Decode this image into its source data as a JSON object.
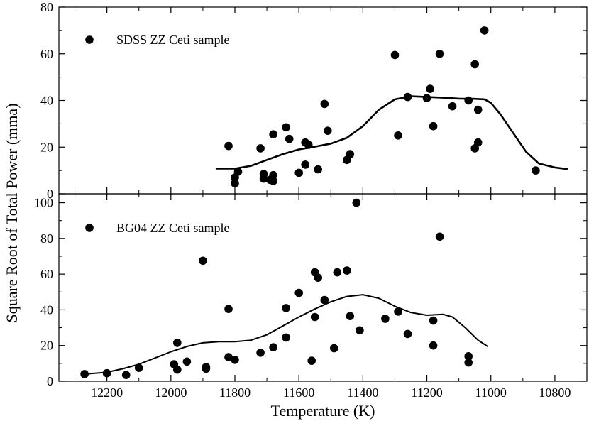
{
  "chart_data": [
    {
      "type": "scatter",
      "legend": "SDSS ZZ Ceti sample",
      "legend_position": "top-left",
      "xlim": [
        12350,
        10700
      ],
      "ylim": [
        0,
        80
      ],
      "yticks": [
        0,
        20,
        40,
        60,
        80
      ],
      "points": [
        [
          11820,
          20.5
        ],
        [
          11800,
          7
        ],
        [
          11800,
          4.5
        ],
        [
          11790,
          9.5
        ],
        [
          11720,
          19.5
        ],
        [
          11710,
          8.5
        ],
        [
          11710,
          6.5
        ],
        [
          11690,
          6
        ],
        [
          11680,
          8
        ],
        [
          11680,
          5.5
        ],
        [
          11680,
          25.5
        ],
        [
          11640,
          28.5
        ],
        [
          11630,
          23.5
        ],
        [
          11600,
          9
        ],
        [
          11580,
          22
        ],
        [
          11580,
          12.5
        ],
        [
          11570,
          21
        ],
        [
          11540,
          10.5
        ],
        [
          11520,
          38.5
        ],
        [
          11510,
          27
        ],
        [
          11450,
          14.5
        ],
        [
          11440,
          17
        ],
        [
          11300,
          59.5
        ],
        [
          11290,
          25
        ],
        [
          11260,
          41.5
        ],
        [
          11200,
          41
        ],
        [
          11190,
          45
        ],
        [
          11180,
          29
        ],
        [
          11160,
          60
        ],
        [
          11120,
          37.5
        ],
        [
          11070,
          40
        ],
        [
          11050,
          55.5
        ],
        [
          11050,
          19.5
        ],
        [
          11040,
          22
        ],
        [
          11040,
          36
        ],
        [
          11020,
          70
        ],
        [
          10860,
          10
        ]
      ],
      "curve": [
        [
          11860,
          10.8
        ],
        [
          11800,
          10.8
        ],
        [
          11750,
          12
        ],
        [
          11700,
          14.5
        ],
        [
          11650,
          17
        ],
        [
          11600,
          19
        ],
        [
          11550,
          20.2
        ],
        [
          11500,
          21.5
        ],
        [
          11450,
          24
        ],
        [
          11400,
          29
        ],
        [
          11350,
          36
        ],
        [
          11300,
          40.5
        ],
        [
          11250,
          41.8
        ],
        [
          11200,
          41.5
        ],
        [
          11150,
          41.2
        ],
        [
          11100,
          40.8
        ],
        [
          11050,
          40.7
        ],
        [
          11020,
          40.5
        ],
        [
          11000,
          39
        ],
        [
          10970,
          34
        ],
        [
          10930,
          26
        ],
        [
          10890,
          18
        ],
        [
          10850,
          13
        ],
        [
          10800,
          11.3
        ],
        [
          10760,
          10.6
        ]
      ]
    },
    {
      "type": "scatter",
      "legend": "BG04 ZZ Ceti sample",
      "legend_position": "top-left",
      "xlim": [
        12350,
        10700
      ],
      "ylim": [
        0,
        105
      ],
      "yticks": [
        0,
        20,
        40,
        60,
        80,
        100
      ],
      "xticks": [
        12200,
        12000,
        11800,
        11600,
        11400,
        11200,
        11000,
        10800
      ],
      "points": [
        [
          12270,
          4
        ],
        [
          12200,
          4.5
        ],
        [
          12140,
          3.5
        ],
        [
          12100,
          7.5
        ],
        [
          11990,
          9.5
        ],
        [
          11980,
          6.5
        ],
        [
          11980,
          21.5
        ],
        [
          11950,
          11
        ],
        [
          11900,
          67.5
        ],
        [
          11890,
          8
        ],
        [
          11890,
          7
        ],
        [
          11820,
          40.5
        ],
        [
          11820,
          13.5
        ],
        [
          11800,
          12
        ],
        [
          11720,
          16
        ],
        [
          11680,
          19
        ],
        [
          11640,
          41
        ],
        [
          11640,
          24.5
        ],
        [
          11600,
          49.5
        ],
        [
          11560,
          11.5
        ],
        [
          11550,
          61
        ],
        [
          11550,
          36
        ],
        [
          11540,
          58
        ],
        [
          11520,
          45.5
        ],
        [
          11490,
          18.5
        ],
        [
          11480,
          61
        ],
        [
          11450,
          62
        ],
        [
          11440,
          36.5
        ],
        [
          11420,
          100
        ],
        [
          11410,
          28.5
        ],
        [
          11330,
          35
        ],
        [
          11290,
          39
        ],
        [
          11260,
          26.5
        ],
        [
          11180,
          34
        ],
        [
          11180,
          20
        ],
        [
          11160,
          81
        ],
        [
          11070,
          14
        ],
        [
          11070,
          10.5
        ]
      ],
      "curve": [
        [
          12270,
          4
        ],
        [
          12200,
          5
        ],
        [
          12150,
          7
        ],
        [
          12100,
          9.5
        ],
        [
          12050,
          13
        ],
        [
          12000,
          16.5
        ],
        [
          11950,
          19.5
        ],
        [
          11900,
          21.5
        ],
        [
          11850,
          22.2
        ],
        [
          11800,
          22.2
        ],
        [
          11750,
          23
        ],
        [
          11700,
          26
        ],
        [
          11650,
          31
        ],
        [
          11600,
          36
        ],
        [
          11550,
          40.5
        ],
        [
          11500,
          44.5
        ],
        [
          11450,
          47.5
        ],
        [
          11400,
          48.5
        ],
        [
          11350,
          46.5
        ],
        [
          11300,
          42
        ],
        [
          11250,
          38.5
        ],
        [
          11200,
          37
        ],
        [
          11150,
          37.5
        ],
        [
          11120,
          36
        ],
        [
          11080,
          30
        ],
        [
          11040,
          23
        ],
        [
          11010,
          19.5
        ]
      ]
    }
  ],
  "axes": {
    "ylabel": "Square Root of Total Power (mma)",
    "xlabel": "Temperature (K)"
  }
}
